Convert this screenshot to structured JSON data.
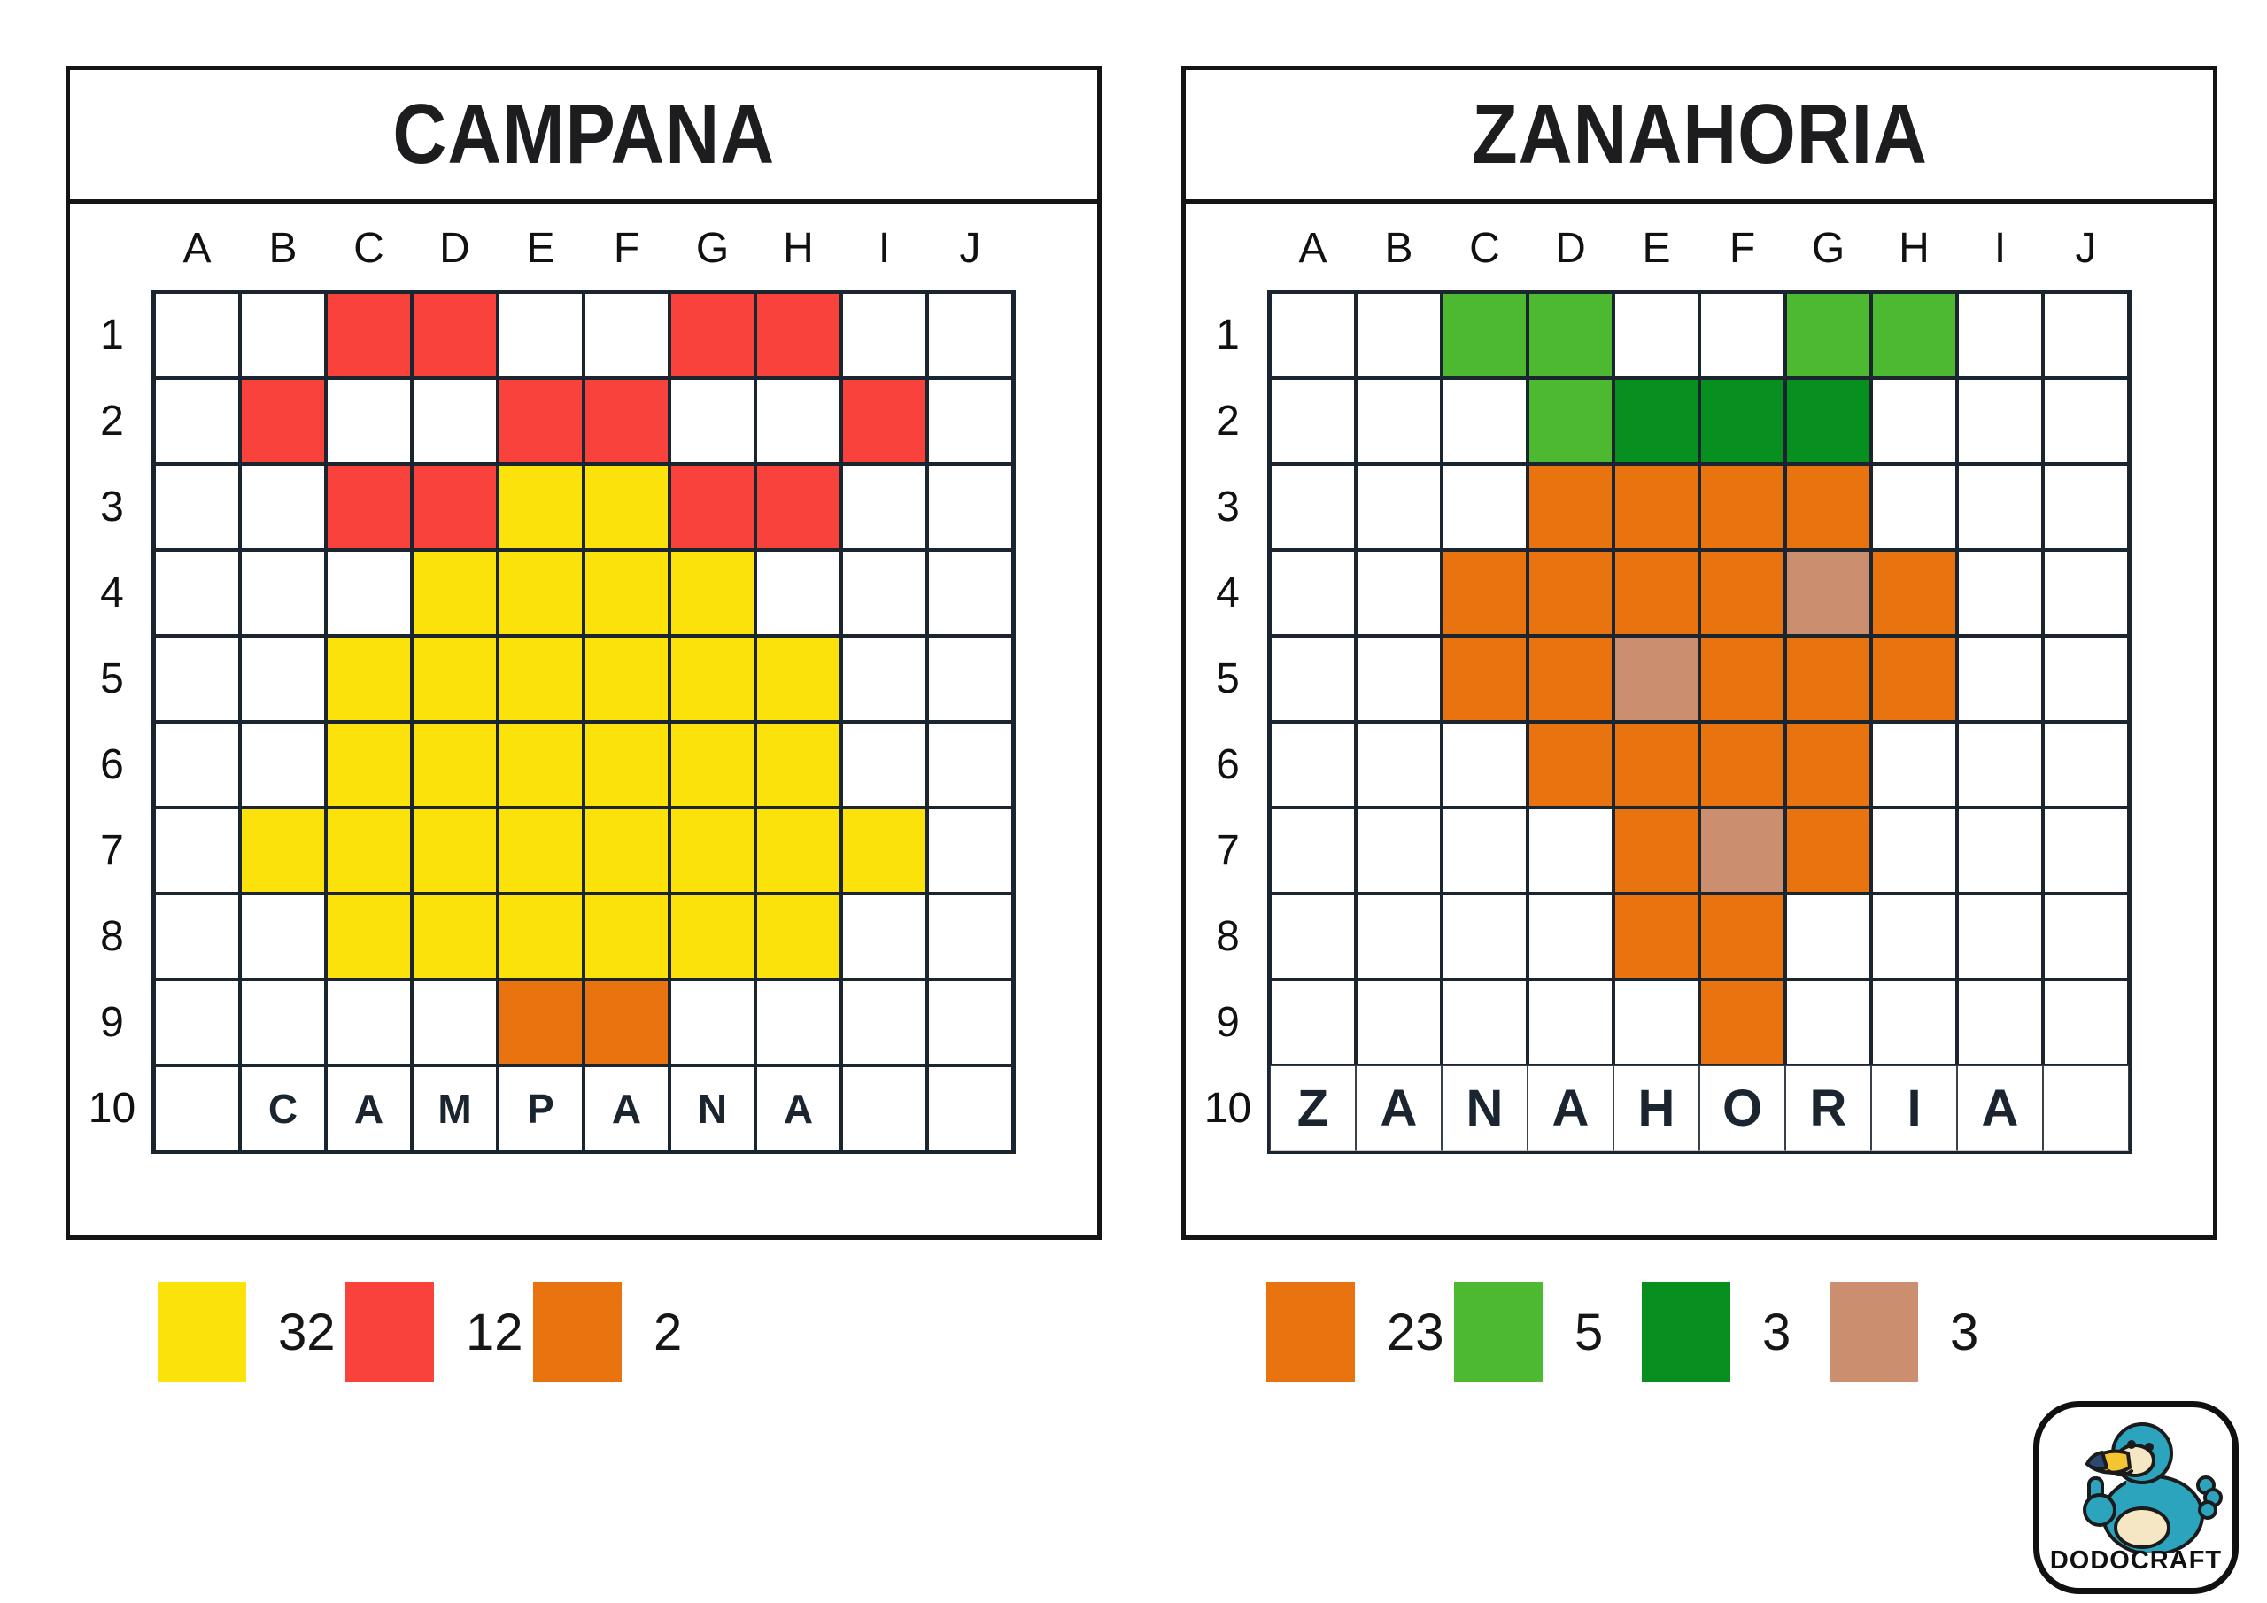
{
  "colors": {
    "yellow": "#FCE20B",
    "red": "#F9423C",
    "orange": "#E8730F",
    "green": "#4CB931",
    "dark_green": "#079020",
    "tan": "#CB8F6F"
  },
  "panels": [
    {
      "title": "CAMPANA",
      "columns": [
        "A",
        "B",
        "C",
        "D",
        "E",
        "F",
        "G",
        "H",
        "I",
        "J"
      ],
      "rows": [
        "1",
        "2",
        "3",
        "4",
        "5",
        "6",
        "7",
        "8",
        "9",
        "10"
      ],
      "grid": [
        [
          "",
          "",
          "red",
          "red",
          "",
          "",
          "red",
          "red",
          "",
          ""
        ],
        [
          "",
          "red",
          "",
          "",
          "red",
          "red",
          "",
          "",
          "red",
          ""
        ],
        [
          "",
          "",
          "red",
          "red",
          "yellow",
          "yellow",
          "red",
          "red",
          "",
          ""
        ],
        [
          "",
          "",
          "",
          "yellow",
          "yellow",
          "yellow",
          "yellow",
          "",
          "",
          ""
        ],
        [
          "",
          "",
          "yellow",
          "yellow",
          "yellow",
          "yellow",
          "yellow",
          "yellow",
          "",
          ""
        ],
        [
          "",
          "",
          "yellow",
          "yellow",
          "yellow",
          "yellow",
          "yellow",
          "yellow",
          "",
          ""
        ],
        [
          "",
          "yellow",
          "yellow",
          "yellow",
          "yellow",
          "yellow",
          "yellow",
          "yellow",
          "yellow",
          ""
        ],
        [
          "",
          "",
          "yellow",
          "yellow",
          "yellow",
          "yellow",
          "yellow",
          "yellow",
          "",
          ""
        ],
        [
          "",
          "",
          "",
          "",
          "orange",
          "orange",
          "",
          "",
          "",
          ""
        ],
        [
          "",
          "",
          "",
          "",
          "",
          "",
          "",
          "",
          "",
          ""
        ]
      ],
      "word_row": [
        "",
        "C",
        "A",
        "M",
        "P",
        "A",
        "N",
        "A",
        "",
        ""
      ],
      "legend": [
        {
          "color": "yellow",
          "count": "32"
        },
        {
          "color": "red",
          "count": "12"
        },
        {
          "color": "orange",
          "count": "2"
        }
      ]
    },
    {
      "title": "ZANAHORIA",
      "columns": [
        "A",
        "B",
        "C",
        "D",
        "E",
        "F",
        "G",
        "H",
        "I",
        "J"
      ],
      "rows": [
        "1",
        "2",
        "3",
        "4",
        "5",
        "6",
        "7",
        "8",
        "9",
        "10"
      ],
      "grid": [
        [
          "",
          "",
          "green",
          "green",
          "",
          "",
          "green",
          "green",
          "",
          ""
        ],
        [
          "",
          "",
          "",
          "green",
          "dark_green",
          "dark_green",
          "dark_green",
          "",
          "",
          ""
        ],
        [
          "",
          "",
          "",
          "orange",
          "orange",
          "orange",
          "orange",
          "",
          "",
          ""
        ],
        [
          "",
          "",
          "orange",
          "orange",
          "orange",
          "orange",
          "tan",
          "orange",
          "",
          ""
        ],
        [
          "",
          "",
          "orange",
          "orange",
          "tan",
          "orange",
          "orange",
          "orange",
          "",
          ""
        ],
        [
          "",
          "",
          "",
          "orange",
          "orange",
          "orange",
          "orange",
          "",
          "",
          ""
        ],
        [
          "",
          "",
          "",
          "",
          "orange",
          "tan",
          "orange",
          "",
          "",
          ""
        ],
        [
          "",
          "",
          "",
          "",
          "orange",
          "orange",
          "",
          "",
          "",
          ""
        ],
        [
          "",
          "",
          "",
          "",
          "",
          "orange",
          "",
          "",
          "",
          ""
        ],
        [
          "",
          "",
          "",
          "",
          "",
          "",
          "",
          "",
          "",
          ""
        ]
      ],
      "word_row": [
        "Z",
        "A",
        "N",
        "A",
        "H",
        "O",
        "R",
        "I",
        "A",
        ""
      ],
      "legend": [
        {
          "color": "orange",
          "count": "23"
        },
        {
          "color": "green",
          "count": "5"
        },
        {
          "color": "dark_green",
          "count": "3"
        },
        {
          "color": "tan",
          "count": "3"
        }
      ]
    }
  ],
  "logo": {
    "text": "DODOCRAFT"
  }
}
